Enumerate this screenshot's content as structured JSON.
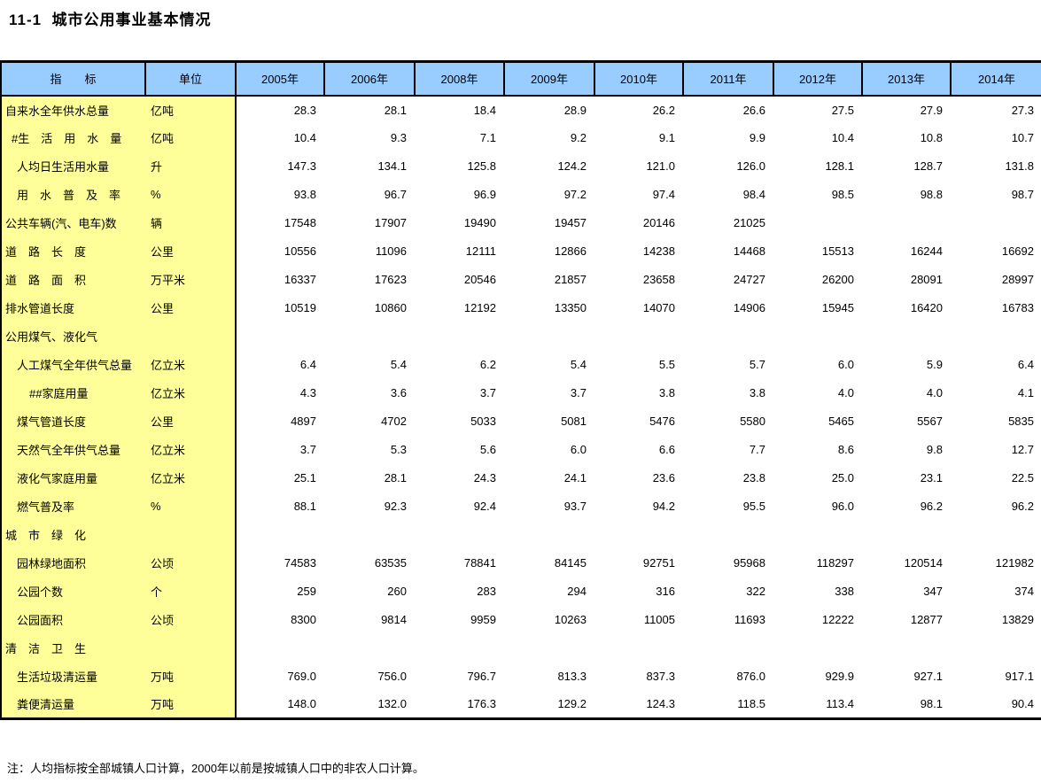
{
  "page": {
    "title": "11-1  城市公用事业基本情况",
    "note": "注：人均指标按全部城镇人口计算，2000年以前是按城镇人口中的非农人口计算。"
  },
  "colors": {
    "header_bg": "#99ccff",
    "label_bg": "#ffff99",
    "border": "#000000",
    "page_bg": "#ffffff"
  },
  "table": {
    "columns": [
      "指　　标",
      "单位",
      "2005年",
      "2006年",
      "2008年",
      "2009年",
      "2010年",
      "2011年",
      "2012年",
      "2013年",
      "2014年"
    ],
    "rows": [
      {
        "label": "自来水全年供水总量",
        "unit": "亿吨",
        "indent": 0,
        "values": [
          "28.3",
          "28.1",
          "18.4",
          "28.9",
          "26.2",
          "26.6",
          "27.5",
          "27.9",
          "27.3"
        ]
      },
      {
        "label": "#生　活　用　水　量",
        "unit": "亿吨",
        "indent": 1,
        "values": [
          "10.4",
          "9.3",
          "7.1",
          "9.2",
          "9.1",
          "9.9",
          "10.4",
          "10.8",
          "10.7"
        ]
      },
      {
        "label": "人均日生活用水量",
        "unit": "升",
        "indent": 2,
        "values": [
          "147.3",
          "134.1",
          "125.8",
          "124.2",
          "121.0",
          "126.0",
          "128.1",
          "128.7",
          "131.8"
        ]
      },
      {
        "label": "用　水　普　及　率",
        "unit": "%",
        "indent": 2,
        "values": [
          "93.8",
          "96.7",
          "96.9",
          "97.2",
          "97.4",
          "98.4",
          "98.5",
          "98.8",
          "98.7"
        ]
      },
      {
        "label": "公共车辆(汽、电车)数",
        "unit": "辆",
        "indent": 0,
        "values": [
          "17548",
          "17907",
          "19490",
          "19457",
          "20146",
          "21025",
          "",
          "",
          ""
        ]
      },
      {
        "label": "道　路　长　度",
        "unit": "公里",
        "indent": 0,
        "values": [
          "10556",
          "11096",
          "12111",
          "12866",
          "14238",
          "14468",
          "15513",
          "16244",
          "16692"
        ]
      },
      {
        "label": "道　路　面　积",
        "unit": "万平米",
        "indent": 0,
        "values": [
          "16337",
          "17623",
          "20546",
          "21857",
          "23658",
          "24727",
          "26200",
          "28091",
          "28997"
        ]
      },
      {
        "label": "排水管道长度",
        "unit": "公里",
        "indent": 0,
        "values": [
          "10519",
          "10860",
          "12192",
          "13350",
          "14070",
          "14906",
          "15945",
          "16420",
          "16783"
        ]
      },
      {
        "label": "公用煤气、液化气",
        "unit": "",
        "indent": 0,
        "values": [
          "",
          "",
          "",
          "",
          "",
          "",
          "",
          "",
          ""
        ]
      },
      {
        "label": "人工煤气全年供气总量",
        "unit": "亿立米",
        "indent": 2,
        "values": [
          "6.4",
          "5.4",
          "6.2",
          "5.4",
          "5.5",
          "5.7",
          "6.0",
          "5.9",
          "6.4"
        ]
      },
      {
        "label": "##家庭用量",
        "unit": "亿立米",
        "indent": 3,
        "values": [
          "4.3",
          "3.6",
          "3.7",
          "3.7",
          "3.8",
          "3.8",
          "4.0",
          "4.0",
          "4.1"
        ]
      },
      {
        "label": "煤气管道长度",
        "unit": "公里",
        "indent": 2,
        "values": [
          "4897",
          "4702",
          "5033",
          "5081",
          "5476",
          "5580",
          "5465",
          "5567",
          "5835"
        ]
      },
      {
        "label": "天然气全年供气总量",
        "unit": "亿立米",
        "indent": 2,
        "values": [
          "3.7",
          "5.3",
          "5.6",
          "6.0",
          "6.6",
          "7.7",
          "8.6",
          "9.8",
          "12.7"
        ]
      },
      {
        "label": "液化气家庭用量",
        "unit": "亿立米",
        "indent": 2,
        "values": [
          "25.1",
          "28.1",
          "24.3",
          "24.1",
          "23.6",
          "23.8",
          "25.0",
          "23.1",
          "22.5"
        ]
      },
      {
        "label": "燃气普及率",
        "unit": "%",
        "indent": 2,
        "values": [
          "88.1",
          "92.3",
          "92.4",
          "93.7",
          "94.2",
          "95.5",
          "96.0",
          "96.2",
          "96.2"
        ]
      },
      {
        "label": "城　市　绿　化",
        "unit": "",
        "indent": 0,
        "values": [
          "",
          "",
          "",
          "",
          "",
          "",
          "",
          "",
          ""
        ]
      },
      {
        "label": "园林绿地面积",
        "unit": "公顷",
        "indent": 2,
        "values": [
          "74583",
          "63535",
          "78841",
          "84145",
          "92751",
          "95968",
          "118297",
          "120514",
          "121982"
        ]
      },
      {
        "label": "公园个数",
        "unit": "个",
        "indent": 2,
        "values": [
          "259",
          "260",
          "283",
          "294",
          "316",
          "322",
          "338",
          "347",
          "374"
        ]
      },
      {
        "label": "公园面积",
        "unit": "公顷",
        "indent": 2,
        "values": [
          "8300",
          "9814",
          "9959",
          "10263",
          "11005",
          "11693",
          "12222",
          "12877",
          "13829"
        ]
      },
      {
        "label": "清　洁　卫　生",
        "unit": "",
        "indent": 0,
        "values": [
          "",
          "",
          "",
          "",
          "",
          "",
          "",
          "",
          ""
        ]
      },
      {
        "label": "生活垃圾清运量",
        "unit": "万吨",
        "indent": 2,
        "values": [
          "769.0",
          "756.0",
          "796.7",
          "813.3",
          "837.3",
          "876.0",
          "929.9",
          "927.1",
          "917.1"
        ]
      },
      {
        "label": "粪便清运量",
        "unit": "万吨",
        "indent": 2,
        "values": [
          "148.0",
          "132.0",
          "176.3",
          "129.2",
          "124.3",
          "118.5",
          "113.4",
          "98.1",
          "90.4"
        ]
      }
    ]
  }
}
